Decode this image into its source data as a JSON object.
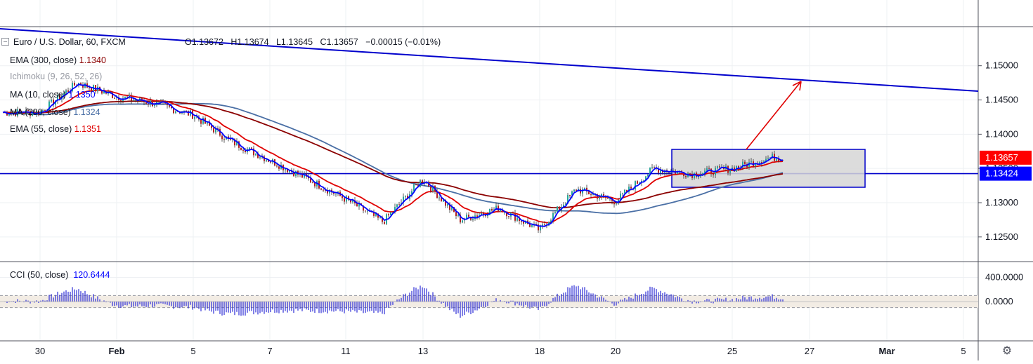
{
  "header": {
    "symbol": "Euro / U.S. Dollar, 60, FXCM",
    "open": "O1.13672",
    "high": "H1.13674",
    "low": "L1.13645",
    "close": "C1.13657",
    "change": "−0.00015 (−0.01%)"
  },
  "indicators": [
    {
      "label": "EMA (300, close)",
      "value": "1.1340",
      "color": "#8b0000",
      "label_color": "#131722"
    },
    {
      "label": "Ichimoku (9, 26, 52, 26)",
      "value": "",
      "color": "#9598a1",
      "label_color": "#9598a1"
    },
    {
      "label": "MA (10, close)",
      "value": "1.1350",
      "color": "#0000ff",
      "label_color": "#131722"
    },
    {
      "label": "MA (200, close)",
      "value": "1.1324",
      "color": "#4a6fa5",
      "label_color": "#131722"
    },
    {
      "label": "EMA (55, close)",
      "value": "1.1351",
      "color": "#e00000",
      "label_color": "#131722"
    }
  ],
  "cci": {
    "label": "CCI (50, close)",
    "value": "120.6444",
    "value_color": "#0000ff"
  },
  "price_badges": [
    {
      "text": "1.13657",
      "color": "#ff0000"
    },
    {
      "text": "1.13424",
      "color": "#0000ff"
    }
  ],
  "colors": {
    "trendline": "#0000cc",
    "ma10": "#0000ff",
    "ema55": "#e00000",
    "ema300": "#8b0000",
    "ma200": "#4a6fa5",
    "up_candle": "#26a69a",
    "down_candle": "#b22222",
    "arrow": "#e00000",
    "box_fill": "#d6d6d6",
    "box_border": "#0000cc",
    "cci_bar": "#2b2bd6",
    "cci_band": "#f2ece4"
  },
  "chart_data": [
    {
      "type": "candlestick",
      "symbol": "EUR/USD",
      "timeframe": "60",
      "x_ticks": [
        "30",
        "Feb",
        "5",
        "7",
        "11",
        "13",
        "18",
        "20",
        "25",
        "27",
        "Mar",
        "5"
      ],
      "y_ticks": [
        "1.15000",
        "1.14500",
        "1.14000",
        "1.13500",
        "1.13000",
        "1.12500"
      ],
      "ylim": [
        1.1215,
        1.1555
      ],
      "close_path": [
        {
          "x": "30",
          "y": 1.1432
        },
        {
          "x": "31",
          "y": 1.1475
        },
        {
          "x": "Feb",
          "y": 1.1455
        },
        {
          "x": "4",
          "y": 1.1445
        },
        {
          "x": "5",
          "y": 1.1428
        },
        {
          "x": "6",
          "y": 1.139
        },
        {
          "x": "7",
          "y": 1.1362
        },
        {
          "x": "8",
          "y": 1.1335
        },
        {
          "x": "11",
          "y": 1.1305
        },
        {
          "x": "12",
          "y": 1.1272
        },
        {
          "x": "13",
          "y": 1.1335
        },
        {
          "x": "14",
          "y": 1.1275
        },
        {
          "x": "15",
          "y": 1.1292
        },
        {
          "x": "18",
          "y": 1.126
        },
        {
          "x": "19",
          "y": 1.132
        },
        {
          "x": "20",
          "y": 1.1302
        },
        {
          "x": "21",
          "y": 1.135
        },
        {
          "x": "22",
          "y": 1.1342
        },
        {
          "x": "25",
          "y": 1.135
        },
        {
          "x": "26",
          "y": 1.1366
        }
      ],
      "price_levels": [
        1.13657,
        1.13424
      ],
      "series": [
        {
          "name": "EMA (300, close)",
          "last": 1.134
        },
        {
          "name": "MA (10, close)",
          "last": 1.135
        },
        {
          "name": "MA (200, close)",
          "last": 1.1324
        },
        {
          "name": "EMA (55, close)",
          "last": 1.1351
        }
      ],
      "grid": true
    },
    {
      "type": "bar",
      "name": "CCI (50, close)",
      "last": 120.6444,
      "y_ticks": [
        "400.0000",
        "0.0000"
      ],
      "ylim": [
        -650,
        650
      ],
      "band": [
        -100,
        100
      ],
      "grid": true
    }
  ]
}
